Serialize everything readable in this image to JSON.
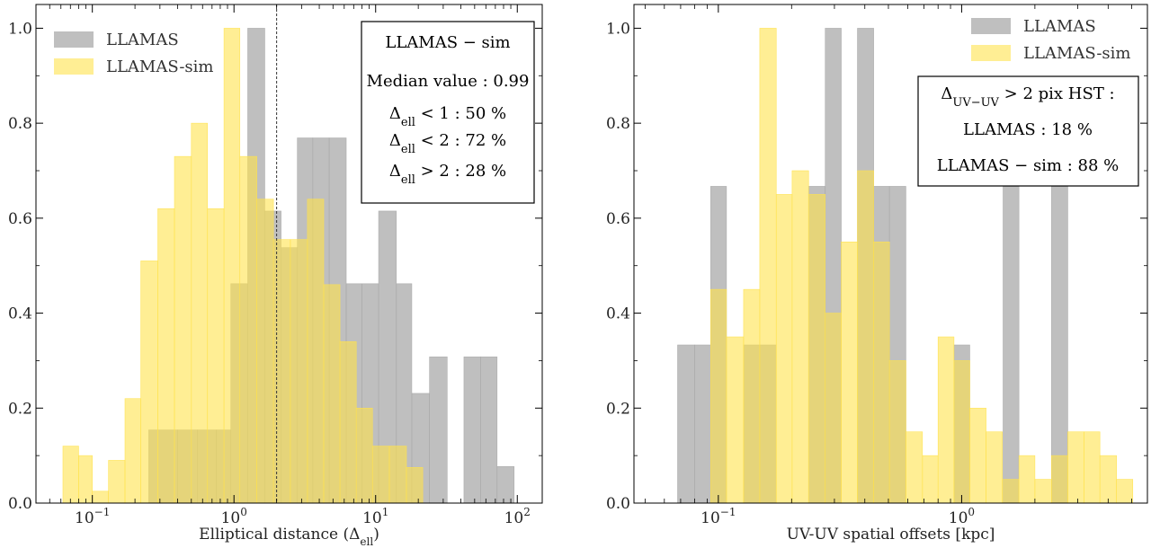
{
  "chart_data": [
    {
      "type": "bar",
      "xscale": "log",
      "xlabel": "Elliptical distance (Δell)",
      "xlim": [
        0.04,
        150
      ],
      "ylim": [
        0,
        1.05
      ],
      "yticks": [
        "0.0",
        "0.2",
        "0.4",
        "0.6",
        "0.8",
        "1.0"
      ],
      "xticks": [
        {
          "value": 0.1,
          "base": "10",
          "exp": "−1"
        },
        {
          "value": 1,
          "base": "10",
          "exp": "0"
        },
        {
          "value": 10,
          "base": "10",
          "exp": "1"
        },
        {
          "value": 100,
          "base": "10",
          "exp": "2"
        }
      ],
      "vline": 2,
      "legend_position": "top-left",
      "series": [
        {
          "name": "LLAMAS",
          "color": "#a9a9a9",
          "bins": [
            [
              0.25,
              0.4,
              0.154
            ],
            [
              0.4,
              0.55,
              0.154
            ],
            [
              0.55,
              0.75,
              0.154
            ],
            [
              0.75,
              0.95,
              0.154
            ],
            [
              0.95,
              1.25,
              0.462
            ],
            [
              1.25,
              1.65,
              1.0
            ],
            [
              1.65,
              2.15,
              0.615
            ],
            [
              2.15,
              2.8,
              0.538
            ],
            [
              2.8,
              3.6,
              0.769
            ],
            [
              3.6,
              4.7,
              0.769
            ],
            [
              4.7,
              6.2,
              0.769
            ],
            [
              6.2,
              8.0,
              0.462
            ],
            [
              8.0,
              10.5,
              0.462
            ],
            [
              10.5,
              14.0,
              0.615
            ],
            [
              14.0,
              18.0,
              0.462
            ],
            [
              18.0,
              24.0,
              0.231
            ],
            [
              24.0,
              32.0,
              0.308
            ],
            [
              42.0,
              55.0,
              0.308
            ],
            [
              55.0,
              72.0,
              0.308
            ],
            [
              72.0,
              95.0,
              0.077
            ]
          ]
        },
        {
          "name": "LLAMAS-sim",
          "color": "#ffe24d",
          "bins": [
            [
              0.062,
              0.08,
              0.12
            ],
            [
              0.08,
              0.1,
              0.1
            ],
            [
              0.1,
              0.13,
              0.025
            ],
            [
              0.13,
              0.17,
              0.09
            ],
            [
              0.17,
              0.22,
              0.22
            ],
            [
              0.22,
              0.29,
              0.51
            ],
            [
              0.29,
              0.38,
              0.62
            ],
            [
              0.38,
              0.5,
              0.73
            ],
            [
              0.5,
              0.65,
              0.8
            ],
            [
              0.65,
              0.85,
              0.62
            ],
            [
              0.85,
              1.1,
              1.0
            ],
            [
              1.1,
              1.45,
              0.73
            ],
            [
              1.45,
              1.9,
              0.64
            ],
            [
              1.9,
              2.5,
              0.555
            ],
            [
              2.5,
              3.3,
              0.555
            ],
            [
              3.3,
              4.3,
              0.64
            ],
            [
              4.3,
              5.6,
              0.46
            ],
            [
              5.6,
              7.3,
              0.34
            ],
            [
              7.3,
              9.5,
              0.2
            ],
            [
              9.5,
              12.5,
              0.12
            ],
            [
              12.5,
              16.5,
              0.12
            ],
            [
              16.5,
              21.5,
              0.075
            ]
          ]
        }
      ],
      "annotation": {
        "title": "LLAMAS − sim",
        "lines": [
          {
            "text": "Median value : 0.99",
            "symbol": false
          },
          {
            "symbol": true,
            "sub": "ell",
            "rest": " < 1 : 50 %"
          },
          {
            "symbol": true,
            "sub": "ell",
            "rest": " < 2 : 72 %"
          },
          {
            "symbol": true,
            "sub": "ell",
            "rest": " > 2 : 28 %"
          }
        ]
      }
    },
    {
      "type": "bar",
      "xscale": "log",
      "xlabel": "UV-UV spatial offsets [kpc]",
      "xlim": [
        0.045,
        5.8
      ],
      "ylim": [
        0,
        1.05
      ],
      "yticks": [
        "0.0",
        "0.2",
        "0.4",
        "0.6",
        "0.8",
        "1.0"
      ],
      "xticks": [
        {
          "value": 0.1,
          "base": "10",
          "exp": "−1"
        },
        {
          "value": 1,
          "base": "10",
          "exp": "0"
        }
      ],
      "legend_position": "top-right",
      "series": [
        {
          "name": "LLAMAS",
          "color": "#a9a9a9",
          "bins": [
            [
              0.068,
              0.08,
              0.333
            ],
            [
              0.08,
              0.093,
              0.333
            ],
            [
              0.093,
              0.108,
              0.667
            ],
            [
              0.127,
              0.148,
              0.333
            ],
            [
              0.148,
              0.173,
              0.333
            ],
            [
              0.235,
              0.275,
              0.667
            ],
            [
              0.275,
              0.32,
              1.0
            ],
            [
              0.373,
              0.435,
              1.0
            ],
            [
              0.435,
              0.505,
              0.667
            ],
            [
              0.505,
              0.59,
              0.667
            ],
            [
              0.93,
              1.08,
              0.333
            ],
            [
              1.48,
              1.72,
              0.667
            ],
            [
              2.34,
              2.73,
              0.667
            ]
          ]
        },
        {
          "name": "LLAMAS-sim",
          "color": "#ffe24d",
          "bins": [
            [
              0.093,
              0.108,
              0.45
            ],
            [
              0.108,
              0.127,
              0.35
            ],
            [
              0.127,
              0.148,
              0.45
            ],
            [
              0.148,
              0.173,
              1.0
            ],
            [
              0.173,
              0.201,
              0.65
            ],
            [
              0.201,
              0.235,
              0.7
            ],
            [
              0.235,
              0.275,
              0.65
            ],
            [
              0.275,
              0.32,
              0.4
            ],
            [
              0.32,
              0.373,
              0.55
            ],
            [
              0.373,
              0.435,
              0.7
            ],
            [
              0.435,
              0.505,
              0.55
            ],
            [
              0.505,
              0.59,
              0.3
            ],
            [
              0.59,
              0.69,
              0.15
            ],
            [
              0.69,
              0.8,
              0.1
            ],
            [
              0.8,
              0.93,
              0.35
            ],
            [
              0.93,
              1.08,
              0.3
            ],
            [
              1.08,
              1.26,
              0.2
            ],
            [
              1.26,
              1.47,
              0.15
            ],
            [
              1.47,
              1.72,
              0.05
            ],
            [
              1.72,
              2.0,
              0.1
            ],
            [
              2.0,
              2.34,
              0.05
            ],
            [
              2.34,
              2.73,
              0.1
            ],
            [
              2.73,
              3.18,
              0.15
            ],
            [
              3.18,
              3.7,
              0.15
            ],
            [
              3.7,
              4.33,
              0.1
            ],
            [
              4.33,
              5.05,
              0.05
            ]
          ]
        }
      ],
      "annotation": {
        "title_parts": {
          "sub": "UV−UV",
          "rest": " > 2 pix HST :"
        },
        "lines": [
          {
            "text": "LLAMAS : 18 %"
          },
          {
            "text": "LLAMAS − sim : 88 %"
          }
        ]
      }
    }
  ]
}
